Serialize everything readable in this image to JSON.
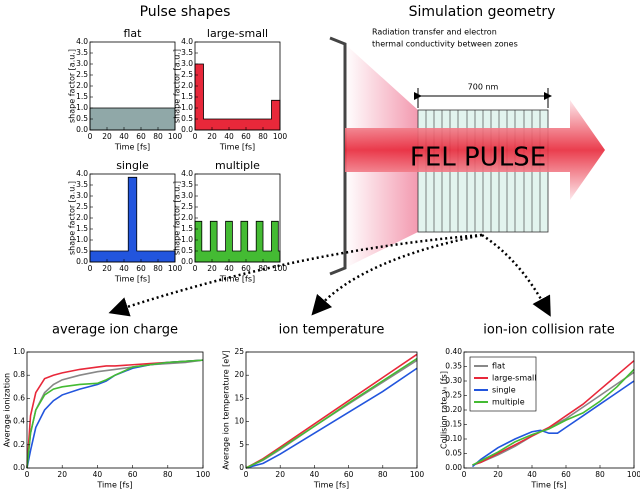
{
  "headings": {
    "left": "Pulse shapes",
    "right": "Simulation geometry"
  },
  "geometry": {
    "note": [
      "Radiation transfer and electron",
      "thermal conductivity between zones"
    ],
    "width_label": "700 nm",
    "pulse_label": "FEL PULSE"
  },
  "chart_data": [
    {
      "type": "area",
      "title": "flat",
      "xlabel": "Time [fs]",
      "ylabel": "shape factor [a.u.]",
      "color": "#90a8a8",
      "x": [
        0,
        100
      ],
      "values": [
        1,
        1
      ],
      "xlim": [
        0,
        100
      ],
      "xticks": [
        0,
        20,
        40,
        60,
        80,
        100
      ],
      "ylim": [
        0,
        4
      ],
      "yticks": [
        {
          "value": 0,
          "label": "0.0"
        },
        {
          "value": 0.5,
          "label": "0.5"
        },
        {
          "value": 1,
          "label": "1.0"
        },
        {
          "value": 1.5,
          "label": "1.5"
        },
        {
          "value": 2,
          "label": "2.0"
        },
        {
          "value": 2.5,
          "label": "2.5"
        },
        {
          "value": 3,
          "label": "3.0"
        },
        {
          "value": 3.5,
          "label": "3.5"
        },
        {
          "value": 4,
          "label": "4.0"
        }
      ]
    },
    {
      "type": "area",
      "title": "large-small",
      "xlabel": "Time [fs]",
      "ylabel": "shape factor [a.u.]",
      "color": "#e8283a",
      "x": [
        0,
        10,
        10,
        90,
        90,
        100
      ],
      "values": [
        3,
        3,
        0.5,
        0.5,
        1.35,
        1.35
      ],
      "xlim": [
        0,
        100
      ],
      "xticks": [
        0,
        20,
        40,
        60,
        80,
        100
      ],
      "ylim": [
        0,
        4
      ],
      "yticks": [
        {
          "value": 0,
          "label": "0.0"
        },
        {
          "value": 0.5,
          "label": "0.5"
        },
        {
          "value": 1,
          "label": "1.0"
        },
        {
          "value": 1.5,
          "label": "1.5"
        },
        {
          "value": 2,
          "label": "2.0"
        },
        {
          "value": 2.5,
          "label": "2.5"
        },
        {
          "value": 3,
          "label": "3.0"
        },
        {
          "value": 3.5,
          "label": "3.5"
        },
        {
          "value": 4,
          "label": "4.0"
        }
      ]
    },
    {
      "type": "area",
      "title": "single",
      "xlabel": "Time [fs]",
      "ylabel": "shape factor [a.u.]",
      "color": "#2255dd",
      "x": [
        0,
        45,
        45,
        55,
        55,
        100
      ],
      "values": [
        0.5,
        0.5,
        3.85,
        3.85,
        0.5,
        0.5
      ],
      "xlim": [
        0,
        100
      ],
      "xticks": [
        0,
        20,
        40,
        60,
        80,
        100
      ],
      "ylim": [
        0,
        4
      ],
      "yticks": [
        {
          "value": 0,
          "label": "0.0"
        },
        {
          "value": 0.5,
          "label": "0.5"
        },
        {
          "value": 1,
          "label": "1.0"
        },
        {
          "value": 1.5,
          "label": "1.5"
        },
        {
          "value": 2,
          "label": "2.0"
        },
        {
          "value": 2.5,
          "label": "2.5"
        },
        {
          "value": 3,
          "label": "3.0"
        },
        {
          "value": 3.5,
          "label": "3.5"
        },
        {
          "value": 4,
          "label": "4.0"
        }
      ]
    },
    {
      "type": "area",
      "title": "multiple",
      "xlabel": "Time [fs]",
      "ylabel": "shape factor [a.u.]",
      "color": "#44bb33",
      "x": [
        0,
        8,
        8,
        18,
        18,
        26,
        26,
        36,
        36,
        44,
        44,
        54,
        54,
        62,
        62,
        72,
        72,
        80,
        80,
        90,
        90,
        98,
        98,
        100
      ],
      "values": [
        1.85,
        1.85,
        0.5,
        0.5,
        1.85,
        1.85,
        0.5,
        0.5,
        1.85,
        1.85,
        0.5,
        0.5,
        1.85,
        1.85,
        0.5,
        0.5,
        1.85,
        1.85,
        0.5,
        0.5,
        1.85,
        1.85,
        0.5,
        0.5
      ],
      "xlim": [
        0,
        100
      ],
      "xticks": [
        0,
        20,
        40,
        60,
        80,
        100
      ],
      "ylim": [
        0,
        4
      ],
      "yticks": [
        {
          "value": 0,
          "label": "0.0"
        },
        {
          "value": 0.5,
          "label": "0.5"
        },
        {
          "value": 1,
          "label": "1.0"
        },
        {
          "value": 1.5,
          "label": "1.5"
        },
        {
          "value": 2,
          "label": "2.0"
        },
        {
          "value": 2.5,
          "label": "2.5"
        },
        {
          "value": 3,
          "label": "3.0"
        },
        {
          "value": 3.5,
          "label": "3.5"
        },
        {
          "value": 4,
          "label": "4.0"
        }
      ]
    },
    {
      "type": "line",
      "title": "average ion charge",
      "xlabel": "Time [fs]",
      "ylabel": "Average ionization",
      "x": [
        0,
        2,
        5,
        10,
        15,
        20,
        30,
        40,
        45,
        50,
        60,
        70,
        80,
        90,
        100
      ],
      "series": [
        {
          "color": "#888888",
          "values": [
            0,
            0.3,
            0.5,
            0.65,
            0.72,
            0.76,
            0.8,
            0.83,
            0.84,
            0.85,
            0.87,
            0.89,
            0.9,
            0.91,
            0.93
          ]
        },
        {
          "color": "#e8283a",
          "values": [
            0,
            0.45,
            0.65,
            0.77,
            0.8,
            0.82,
            0.85,
            0.87,
            0.88,
            0.88,
            0.89,
            0.9,
            0.91,
            0.92,
            0.93
          ]
        },
        {
          "color": "#2255dd",
          "values": [
            0,
            0.15,
            0.35,
            0.5,
            0.58,
            0.63,
            0.68,
            0.72,
            0.75,
            0.8,
            0.86,
            0.89,
            0.91,
            0.92,
            0.93
          ]
        },
        {
          "color": "#44bb33",
          "values": [
            0,
            0.3,
            0.5,
            0.63,
            0.68,
            0.7,
            0.72,
            0.73,
            0.76,
            0.8,
            0.87,
            0.89,
            0.91,
            0.92,
            0.93
          ]
        }
      ],
      "xlim": [
        0,
        100
      ],
      "xticks": [
        0,
        20,
        40,
        60,
        80,
        100
      ],
      "ylim": [
        0,
        1
      ],
      "yticks": [
        {
          "value": 0,
          "label": "0.0"
        },
        {
          "value": 0.2,
          "label": "0.2"
        },
        {
          "value": 0.4,
          "label": "0.4"
        },
        {
          "value": 0.6,
          "label": "0.6"
        },
        {
          "value": 0.8,
          "label": "0.8"
        },
        {
          "value": 1,
          "label": "1.0"
        }
      ]
    },
    {
      "type": "line",
      "title": "ion temperature",
      "xlabel": "Time [fs]",
      "ylabel": "Average ion temperature [eV]",
      "x": [
        0,
        10,
        20,
        40,
        60,
        80,
        100
      ],
      "series": [
        {
          "color": "#888888",
          "values": [
            0,
            1.7,
            4,
            9,
            13.8,
            18.5,
            23.2
          ]
        },
        {
          "color": "#e8283a",
          "values": [
            0,
            2,
            4.5,
            9.5,
            14.5,
            19.5,
            24.5
          ]
        },
        {
          "color": "#2255dd",
          "values": [
            0,
            1,
            3,
            7.5,
            12,
            16.5,
            21.5
          ]
        },
        {
          "color": "#44bb33",
          "values": [
            0,
            1.8,
            4.2,
            9,
            14,
            18.8,
            23.6
          ]
        }
      ],
      "xlim": [
        0,
        100
      ],
      "xticks": [
        0,
        20,
        40,
        60,
        80,
        100
      ],
      "ylim": [
        0,
        25
      ],
      "yticks": [
        0,
        5,
        10,
        15,
        20,
        25
      ]
    },
    {
      "type": "line",
      "title": "ion-ion collision rate",
      "xlabel": "Time [fs]",
      "ylabel": "Collision rate νᵢᵢ [fs]",
      "legend": "upper left",
      "x": [
        5,
        10,
        20,
        30,
        40,
        45,
        50,
        55,
        60,
        70,
        80,
        90,
        100
      ],
      "series": [
        {
          "name": "flat",
          "color": "#888888",
          "values": [
            0.01,
            0.02,
            0.045,
            0.075,
            0.11,
            0.125,
            0.14,
            0.155,
            0.17,
            0.21,
            0.25,
            0.29,
            0.33
          ]
        },
        {
          "name": "large-small",
          "color": "#e8283a",
          "values": [
            0.01,
            0.02,
            0.05,
            0.08,
            0.11,
            0.125,
            0.14,
            0.16,
            0.18,
            0.22,
            0.27,
            0.32,
            0.37
          ]
        },
        {
          "name": "single",
          "color": "#2255dd",
          "values": [
            0.005,
            0.03,
            0.07,
            0.1,
            0.125,
            0.13,
            0.12,
            0.12,
            0.14,
            0.18,
            0.22,
            0.26,
            0.3
          ]
        },
        {
          "name": "multiple",
          "color": "#44bb33",
          "values": [
            0.01,
            0.025,
            0.055,
            0.09,
            0.115,
            0.125,
            0.135,
            0.15,
            0.165,
            0.19,
            0.23,
            0.28,
            0.34
          ]
        }
      ],
      "xlim": [
        0,
        100
      ],
      "xticks": [
        0,
        20,
        40,
        60,
        80,
        100
      ],
      "ylim": [
        0,
        0.4
      ],
      "yticks": [
        {
          "value": 0,
          "label": "0.00"
        },
        {
          "value": 0.05,
          "label": "0.05"
        },
        {
          "value": 0.1,
          "label": "0.10"
        },
        {
          "value": 0.15,
          "label": "0.15"
        },
        {
          "value": 0.2,
          "label": "0.20"
        },
        {
          "value": 0.25,
          "label": "0.25"
        },
        {
          "value": 0.3,
          "label": "0.30"
        },
        {
          "value": 0.35,
          "label": "0.35"
        },
        {
          "value": 0.4,
          "label": "0.40"
        }
      ]
    }
  ]
}
